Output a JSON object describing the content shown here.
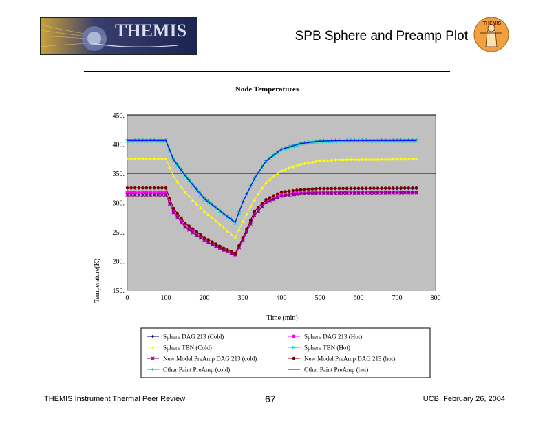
{
  "header": {
    "title": "SPB Sphere and Preamp Plot",
    "logo_left_text": "THEMIS",
    "logo_right_text": "THEMIS"
  },
  "footer": {
    "left": "THEMIS Instrument Thermal Peer Review",
    "page": "67",
    "right": "UCB, February 26, 2004"
  },
  "colors": {
    "plot_bg": "#c0c0c0",
    "sphere_cold": "#00007f",
    "sphere_hot": "#ff00ff",
    "tbn_cold": "#ffff00",
    "tbn_hot": "#00cccc",
    "preamp_cold": "#7f007f",
    "preamp_hot": "#7f0000",
    "paint_cold": "#00a0a0",
    "paint_hot": "#0000ff"
  },
  "chart_data": {
    "type": "line",
    "title": "Node Temperatures",
    "xlabel": "Time (min)",
    "ylabel": "Temperature(K)",
    "xlim": [
      0,
      800
    ],
    "ylim": [
      150,
      450
    ],
    "x_ticks": [
      "0",
      "100",
      "200",
      "300",
      "400",
      "500",
      "600",
      "700",
      "800"
    ],
    "y_ticks": [
      "450.",
      "400.",
      "350.",
      "300.",
      "250.",
      "200.",
      "150."
    ],
    "gridlines_y": [
      350,
      400,
      450
    ],
    "legend": "bottom",
    "series": [
      {
        "name": "Sphere DAG 213 (Cold)",
        "marker": "diamond",
        "color": "#00007f",
        "points": [
          [
            0,
            325
          ],
          [
            100,
            325
          ],
          [
            120,
            290
          ],
          [
            150,
            265
          ],
          [
            200,
            240
          ],
          [
            250,
            222
          ],
          [
            280,
            213
          ],
          [
            300,
            240
          ],
          [
            330,
            285
          ],
          [
            360,
            305
          ],
          [
            400,
            318
          ],
          [
            450,
            322
          ],
          [
            500,
            324
          ],
          [
            750,
            324
          ]
        ]
      },
      {
        "name": "Sphere DAG 213 (Hot)",
        "marker": "square",
        "color": "#ff00ff",
        "points": [
          [
            0,
            318
          ],
          [
            100,
            318
          ],
          [
            120,
            285
          ],
          [
            150,
            260
          ],
          [
            200,
            236
          ],
          [
            250,
            219
          ],
          [
            280,
            211
          ],
          [
            300,
            237
          ],
          [
            330,
            280
          ],
          [
            360,
            300
          ],
          [
            400,
            313
          ],
          [
            450,
            317
          ],
          [
            500,
            318
          ],
          [
            750,
            318
          ]
        ]
      },
      {
        "name": "Sphere TBN (Cold)",
        "marker": "triangle",
        "color": "#ffff00",
        "points": [
          [
            0,
            375
          ],
          [
            100,
            375
          ],
          [
            120,
            345
          ],
          [
            150,
            318
          ],
          [
            200,
            285
          ],
          [
            250,
            258
          ],
          [
            280,
            240
          ],
          [
            300,
            268
          ],
          [
            330,
            305
          ],
          [
            360,
            335
          ],
          [
            400,
            355
          ],
          [
            450,
            366
          ],
          [
            500,
            372
          ],
          [
            550,
            374
          ],
          [
            750,
            375
          ]
        ]
      },
      {
        "name": "Sphere TBN (Hot)",
        "marker": "x",
        "color": "#00cccc",
        "points": [
          [
            0,
            405
          ],
          [
            100,
            405
          ],
          [
            120,
            372
          ],
          [
            150,
            345
          ],
          [
            200,
            305
          ],
          [
            250,
            280
          ],
          [
            280,
            265
          ],
          [
            300,
            300
          ],
          [
            330,
            340
          ],
          [
            360,
            370
          ],
          [
            400,
            390
          ],
          [
            450,
            400
          ],
          [
            500,
            404
          ],
          [
            550,
            405
          ],
          [
            750,
            405
          ]
        ]
      },
      {
        "name": "New Model PreAmp DAG 213 (cold)",
        "marker": "star",
        "color": "#7f007f",
        "points": [
          [
            0,
            313
          ],
          [
            100,
            313
          ],
          [
            120,
            283
          ],
          [
            150,
            258
          ],
          [
            200,
            235
          ],
          [
            250,
            219
          ],
          [
            280,
            211
          ],
          [
            300,
            235
          ],
          [
            330,
            278
          ],
          [
            360,
            300
          ],
          [
            400,
            311
          ],
          [
            450,
            315
          ],
          [
            500,
            316
          ],
          [
            750,
            317
          ]
        ]
      },
      {
        "name": "New Model PreAmp DAG 213 (hot)",
        "marker": "dot",
        "color": "#7f0000",
        "points": [
          [
            0,
            325
          ],
          [
            100,
            325
          ],
          [
            120,
            290
          ],
          [
            150,
            265
          ],
          [
            200,
            240
          ],
          [
            250,
            222
          ],
          [
            280,
            213
          ],
          [
            300,
            240
          ],
          [
            330,
            285
          ],
          [
            360,
            305
          ],
          [
            400,
            318
          ],
          [
            450,
            322
          ],
          [
            500,
            324
          ],
          [
            750,
            325
          ]
        ]
      },
      {
        "name": "Other Paint PreAmp (cold)",
        "marker": "plus",
        "color": "#00a0a0",
        "points": [
          [
            0,
            408
          ],
          [
            100,
            408
          ],
          [
            120,
            375
          ],
          [
            150,
            348
          ],
          [
            200,
            308
          ],
          [
            250,
            282
          ],
          [
            280,
            267
          ],
          [
            300,
            302
          ],
          [
            330,
            342
          ],
          [
            360,
            372
          ],
          [
            400,
            392
          ],
          [
            450,
            402
          ],
          [
            500,
            406
          ],
          [
            550,
            407
          ],
          [
            750,
            408
          ]
        ]
      },
      {
        "name": "Other Paint PreAmp (hot)",
        "marker": "none",
        "color": "#0000ff",
        "points": [
          [
            0,
            406
          ],
          [
            100,
            406
          ],
          [
            120,
            373
          ],
          [
            150,
            346
          ],
          [
            200,
            306
          ],
          [
            250,
            281
          ],
          [
            280,
            266
          ],
          [
            300,
            301
          ],
          [
            330,
            341
          ],
          [
            360,
            371
          ],
          [
            400,
            391
          ],
          [
            450,
            401
          ],
          [
            500,
            405
          ],
          [
            550,
            406
          ],
          [
            750,
            406
          ]
        ]
      }
    ]
  }
}
